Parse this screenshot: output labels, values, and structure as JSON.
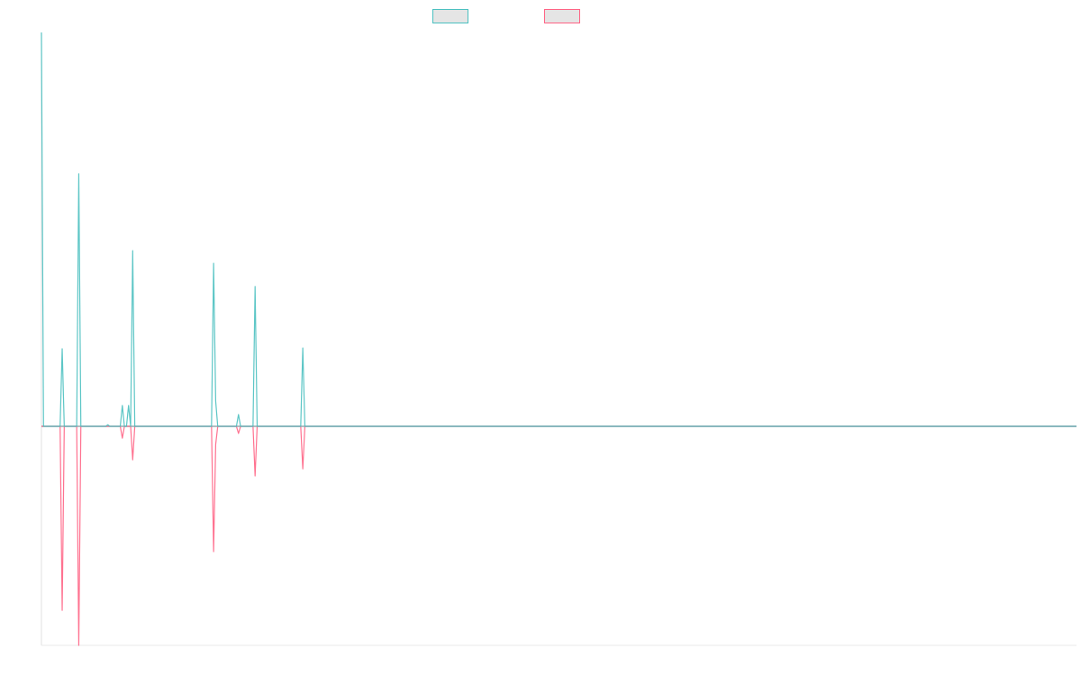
{
  "chart_data": {
    "type": "line",
    "title": "",
    "xlabel": "",
    "ylabel": "",
    "point_count": 500,
    "ylim": [
      -0.556,
      1.0
    ],
    "grid": false,
    "legend_position": "top",
    "series": [
      {
        "label": "",
        "color": "#4bc0c0",
        "points": [
          [
            0,
            1.0
          ],
          [
            10,
            0.197
          ],
          [
            18,
            0.641
          ],
          [
            32,
            0.004
          ],
          [
            39,
            0.053
          ],
          [
            42,
            0.053
          ],
          [
            44,
            0.446
          ],
          [
            83,
            0.414
          ],
          [
            84,
            0.064
          ],
          [
            95,
            0.03
          ],
          [
            103,
            0.355
          ],
          [
            126,
            0.199
          ]
        ]
      },
      {
        "label": "",
        "color": "#ff6384",
        "points": [
          [
            10,
            -0.467
          ],
          [
            18,
            -0.556
          ],
          [
            39,
            -0.03
          ],
          [
            44,
            -0.085
          ],
          [
            83,
            -0.318
          ],
          [
            84,
            -0.046
          ],
          [
            95,
            -0.018
          ],
          [
            103,
            -0.126
          ],
          [
            126,
            -0.108
          ]
        ]
      }
    ]
  }
}
